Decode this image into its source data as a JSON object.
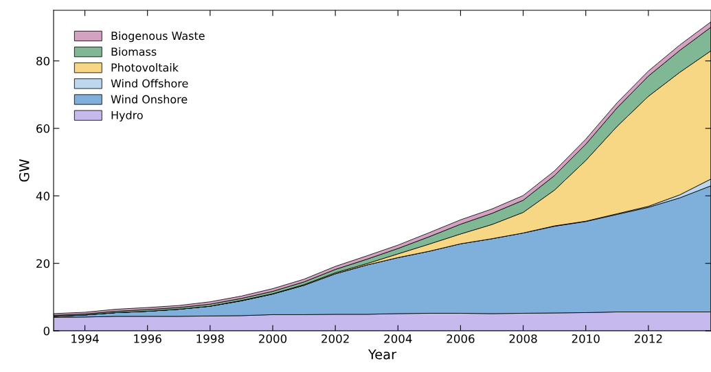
{
  "chart_data": {
    "type": "area",
    "stacked": true,
    "xlabel": "Year",
    "ylabel": "GW",
    "x": [
      1993,
      1994,
      1995,
      1996,
      1997,
      1998,
      1999,
      2000,
      2001,
      2002,
      2003,
      2004,
      2005,
      2006,
      2007,
      2008,
      2009,
      2010,
      2011,
      2012,
      2013,
      2014
    ],
    "xlim": [
      1993,
      2014
    ],
    "xticks": [
      1994,
      1996,
      1998,
      2000,
      2002,
      2004,
      2006,
      2008,
      2010,
      2012
    ],
    "ylim": [
      0,
      95
    ],
    "yticks": [
      0,
      20,
      40,
      60,
      80
    ],
    "grid": false,
    "legend": "top left",
    "series": [
      {
        "name": "Hydro",
        "color": "#c5b9ee",
        "values": [
          4.0,
          4.1,
          4.3,
          4.3,
          4.3,
          4.4,
          4.5,
          4.8,
          4.8,
          4.9,
          4.9,
          5.1,
          5.2,
          5.2,
          5.1,
          5.2,
          5.3,
          5.4,
          5.6,
          5.6,
          5.6,
          5.6
        ]
      },
      {
        "name": "Wind Onshore",
        "color": "#7fb0db",
        "values": [
          0.3,
          0.6,
          1.1,
          1.5,
          2.1,
          2.9,
          4.4,
          6.1,
          8.7,
          12.0,
          14.6,
          16.6,
          18.4,
          20.6,
          22.2,
          23.8,
          25.7,
          27.0,
          28.9,
          31.0,
          33.8,
          37.4
        ]
      },
      {
        "name": "Wind Offshore",
        "color": "#bcd8ee",
        "values": [
          0,
          0,
          0,
          0,
          0,
          0,
          0,
          0,
          0,
          0,
          0,
          0,
          0,
          0,
          0,
          0,
          0.1,
          0.1,
          0.2,
          0.3,
          0.9,
          2.0
        ]
      },
      {
        "name": "Photovoltaik",
        "color": "#f8d784",
        "values": [
          0,
          0,
          0,
          0,
          0,
          0,
          0.1,
          0.1,
          0.2,
          0.3,
          0.4,
          1.1,
          2.1,
          2.9,
          4.2,
          6.1,
          10.6,
          18.0,
          25.9,
          32.6,
          36.3,
          38.0
        ]
      },
      {
        "name": "Biomass",
        "color": "#80b896",
        "values": [
          0.3,
          0.3,
          0.4,
          0.5,
          0.5,
          0.6,
          0.6,
          0.7,
          0.8,
          1.0,
          1.3,
          1.6,
          2.2,
          2.9,
          3.3,
          3.6,
          4.3,
          4.8,
          5.5,
          6.0,
          6.5,
          7.0
        ]
      },
      {
        "name": "Biogenous Waste",
        "color": "#d3a2c1",
        "values": [
          0.5,
          0.5,
          0.6,
          0.6,
          0.6,
          0.7,
          0.7,
          0.8,
          0.8,
          0.9,
          1.0,
          1.0,
          1.2,
          1.3,
          1.3,
          1.4,
          1.4,
          1.5,
          1.5,
          1.5,
          1.6,
          1.6
        ]
      }
    ]
  }
}
